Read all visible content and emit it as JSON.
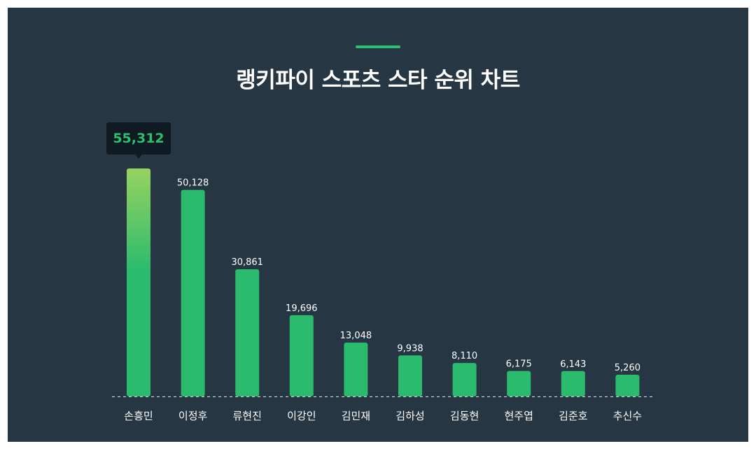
{
  "title": "랭키파이 스포츠 스타 순위 차트",
  "colors": {
    "background": "#263642",
    "bar": "#2bbb6e",
    "bar_highlight_top": "#97d360",
    "accent": "#2bc06f",
    "tooltip_bg": "#0f1a22"
  },
  "chart_data": {
    "type": "bar",
    "title": "랭키파이 스포츠 스타 순위 차트",
    "xlabel": "",
    "ylabel": "",
    "categories": [
      "손흥민",
      "이정후",
      "류현진",
      "이강인",
      "김민재",
      "김하성",
      "김동현",
      "현주엽",
      "김준호",
      "추신수"
    ],
    "values": [
      55312,
      50128,
      30861,
      19696,
      13048,
      9938,
      8110,
      6175,
      6143,
      5260
    ],
    "value_labels": [
      "55,312",
      "50,128",
      "30,861",
      "19,696",
      "13,048",
      "9,938",
      "8,110",
      "6,175",
      "6,143",
      "5,260"
    ],
    "ylim": [
      0,
      55312
    ],
    "grid": false,
    "baseline": "dashed",
    "highlight_index": 0
  }
}
